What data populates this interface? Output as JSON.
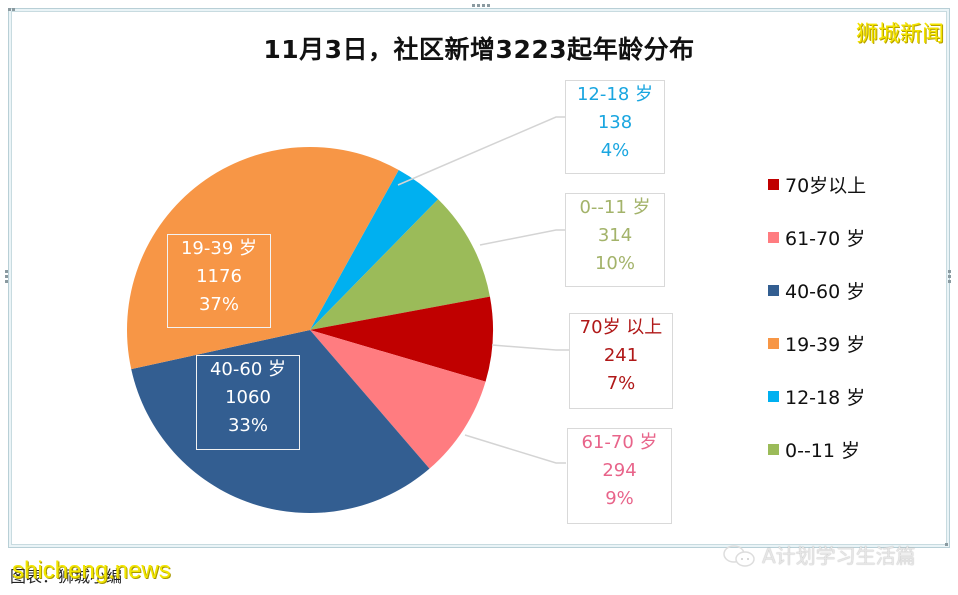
{
  "title": "11月3日，社区新增3223起年龄分布",
  "brand": "狮城新闻",
  "footer": {
    "source_label": "图表：狮城小编",
    "watermark": "shicheng.news",
    "account": "A计划学习生活篇",
    "account_icon": "wechat-icon"
  },
  "legend": [
    {
      "label": "70岁以上",
      "color": "#C00000"
    },
    {
      "label": "61-70 岁",
      "color": "#FF7C80"
    },
    {
      "label": "40-60 岁",
      "color": "#335E91"
    },
    {
      "label": "19-39 岁",
      "color": "#F79646"
    },
    {
      "label": "12-18 岁",
      "color": "#00B0F0"
    },
    {
      "label": "0--11 岁",
      "color": "#9BBB59"
    }
  ],
  "labels": {
    "a12_18": {
      "name": "12-18 岁",
      "value": "138",
      "pct": "4%"
    },
    "a0_11": {
      "name": "0--11 岁",
      "value": "314",
      "pct": "10%"
    },
    "a70": {
      "name": "70岁 以上",
      "value": "241",
      "pct": "7%"
    },
    "a61_70": {
      "name": "61-70 岁",
      "value": "294",
      "pct": "9%"
    },
    "a19_39": {
      "name": "19-39 岁",
      "value": "1176",
      "pct": "37%"
    },
    "a40_60": {
      "name": "40-60 岁",
      "value": "1060",
      "pct": "33%"
    }
  },
  "chart_data": {
    "type": "pie",
    "title": "11月3日，社区新增3223起年龄分布",
    "categories": [
      "12-18 岁",
      "0--11 岁",
      "70岁以上",
      "61-70 岁",
      "40-60 岁",
      "19-39 岁"
    ],
    "values": [
      138,
      314,
      241,
      294,
      1060,
      1176
    ],
    "percentages": [
      4,
      10,
      7,
      9,
      33,
      37
    ],
    "colors": [
      "#00B0F0",
      "#9BBB59",
      "#C00000",
      "#FF7C80",
      "#335E91",
      "#F79646"
    ],
    "total": 3223,
    "legend_position": "right",
    "legend_order": [
      "70岁以上",
      "61-70 岁",
      "40-60 岁",
      "19-39 岁",
      "12-18 岁",
      "0--11 岁"
    ],
    "start_angle_deg": -61,
    "direction": "clockwise"
  }
}
